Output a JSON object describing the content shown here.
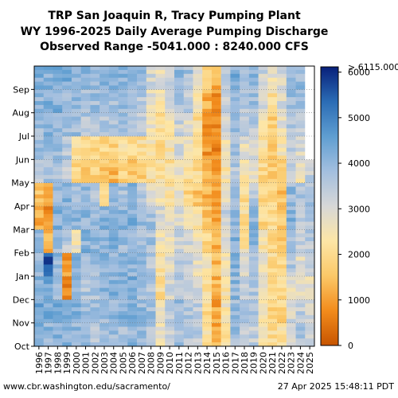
{
  "colors": {
    "colormap_stops": [
      "#c75400",
      "#f28c1c",
      "#fbc868",
      "#fde6a6",
      "#d7d7d7",
      "#a3bfdf",
      "#5f9ed1",
      "#2b6cb5",
      "#08207a"
    ],
    "missing": "#ffffff"
  },
  "chart_data": {
    "type": "heatmap",
    "title": [
      "TRP San Joaquin R, Tracy Pumping Plant",
      "WY 1996-2025 Daily Average Pumping Discharge",
      "Observed Range -5041.000 : 8240.000 CFS"
    ],
    "x_tick_labels": [
      "1996",
      "1997",
      "1998",
      "1999",
      "2000",
      "2001",
      "2002",
      "2003",
      "2004",
      "2005",
      "2006",
      "2007",
      "2008",
      "2009",
      "2010",
      "2011",
      "2012",
      "2013",
      "2014",
      "2015",
      "2016",
      "2017",
      "2018",
      "2019",
      "2020",
      "2021",
      "2022",
      "2023",
      "2024",
      "2025"
    ],
    "y_tick_labels": [
      "Oct",
      "Nov",
      "Dec",
      "Jan",
      "Feb",
      "Mar",
      "Apr",
      "May",
      "Jun",
      "Jul",
      "Aug",
      "Sep"
    ],
    "colorbar": {
      "min": 0,
      "max": 6115,
      "ticks": [
        0,
        1000,
        2000,
        3000,
        4000,
        5000,
        6000
      ],
      "tick_labels": [
        "0",
        "1000",
        "2000",
        "3000",
        "4000",
        "5000",
        "6000"
      ],
      "overflow_label": "> 6115.000"
    },
    "monthly_values": {
      "1996": [
        4100,
        4300,
        4200,
        4000,
        3800,
        1200,
        1500,
        3500,
        3800,
        3900,
        4000,
        4200
      ],
      "1997": [
        4000,
        4200,
        4300,
        5500,
        1200,
        800,
        1300,
        3700,
        3900,
        4000,
        4100,
        4200
      ],
      "1998": [
        4100,
        4300,
        3700,
        4000,
        3800,
        4200,
        3900,
        3600,
        3900,
        4000,
        4200,
        4300
      ],
      "1999": [
        4200,
        4300,
        800,
        1000,
        3500,
        4000,
        4100,
        3300,
        3500,
        3800,
        4000,
        4200
      ],
      "2000": [
        4000,
        4200,
        4100,
        4000,
        2600,
        4000,
        3800,
        1900,
        2100,
        3800,
        4100,
        4200
      ],
      "2001": [
        3800,
        4000,
        3600,
        4000,
        4100,
        4000,
        3900,
        1800,
        2200,
        3600,
        3700,
        4000
      ],
      "2002": [
        3600,
        3800,
        3700,
        3900,
        4000,
        3900,
        3700,
        1700,
        1900,
        3400,
        3800,
        4000
      ],
      "2003": [
        3800,
        3900,
        4000,
        4100,
        4000,
        4100,
        2000,
        1700,
        1900,
        3500,
        3700,
        4000
      ],
      "2004": [
        3900,
        4000,
        4100,
        4000,
        4100,
        4000,
        3800,
        1300,
        1700,
        3600,
        3800,
        4000
      ],
      "2005": [
        3800,
        4100,
        4000,
        4100,
        3900,
        4000,
        3700,
        1900,
        2400,
        3700,
        3900,
        4100
      ],
      "2006": [
        4000,
        4100,
        4200,
        4100,
        4000,
        4200,
        4100,
        1600,
        1900,
        3800,
        3900,
        4100
      ],
      "2007": [
        3800,
        3900,
        3800,
        3800,
        3600,
        3900,
        3700,
        1800,
        2100,
        3500,
        3600,
        3900
      ],
      "2008": [
        3700,
        3800,
        3500,
        3600,
        3700,
        3800,
        3000,
        2100,
        2300,
        2600,
        2800,
        3100
      ],
      "2009": [
        2600,
        2500,
        2100,
        2300,
        2700,
        3100,
        2600,
        2200,
        2000,
        2100,
        2500,
        2800
      ],
      "2010": [
        3200,
        3300,
        3100,
        2800,
        2600,
        2700,
        2300,
        2200,
        2300,
        2500,
        3100,
        3400
      ],
      "2011": [
        3800,
        3900,
        3700,
        3400,
        3200,
        3100,
        2800,
        2600,
        3000,
        3200,
        3600,
        3900
      ],
      "2012": [
        3600,
        3700,
        3400,
        3300,
        3100,
        2400,
        1900,
        2200,
        2500,
        2900,
        3400,
        3700
      ],
      "2013": [
        3500,
        3400,
        3200,
        2800,
        2600,
        2200,
        1600,
        2000,
        2300,
        2100,
        2500,
        3000
      ],
      "2014": [
        2200,
        2000,
        2300,
        2400,
        1900,
        1500,
        1300,
        1100,
        900,
        700,
        1200,
        1600
      ],
      "2015": [
        1200,
        1100,
        1300,
        1400,
        1300,
        1200,
        1100,
        900,
        700,
        800,
        900,
        1300
      ],
      "2016": [
        2300,
        2500,
        2200,
        2600,
        3000,
        3200,
        2800,
        2400,
        2600,
        3000,
        3300,
        3700
      ],
      "2017": [
        3800,
        3900,
        4000,
        4100,
        4200,
        4000,
        3800,
        3600,
        3700,
        3900,
        4100,
        4200
      ],
      "2018": [
        3500,
        3600,
        3400,
        2800,
        2300,
        2100,
        2100,
        2400,
        2800,
        3300,
        3600,
        3900
      ],
      "2019": [
        3400,
        3800,
        3600,
        3700,
        4000,
        4100,
        3500,
        2900,
        3100,
        3500,
        3800,
        4000
      ],
      "2020": [
        2500,
        2300,
        2600,
        2700,
        2400,
        1900,
        1800,
        2000,
        2300,
        2600,
        3000,
        3200
      ],
      "2021": [
        2000,
        1800,
        1900,
        2100,
        2000,
        1900,
        1800,
        1700,
        1500,
        1700,
        2200,
        2700
      ],
      "2022": [
        2100,
        1900,
        2000,
        1800,
        1700,
        1600,
        1500,
        1700,
        2300,
        2800,
        3000,
        3000
      ],
      "2023": [
        3000,
        3100,
        2800,
        3600,
        3900,
        4100,
        3900,
        3400,
        3300,
        3700,
        3900,
        4100
      ],
      "2024": [
        3600,
        3400,
        3000,
        2800,
        3400,
        3600,
        3700,
        2600,
        3000,
        3400,
        3700,
        3900
      ],
      "2025": [
        3200,
        3000,
        2700,
        3300,
        3500,
        3700,
        3600,
        3400
      ]
    }
  },
  "footer": {
    "source": "www.cbr.washington.edu/sacramento/",
    "timestamp": "27 Apr 2025 15:48:11 PDT"
  }
}
